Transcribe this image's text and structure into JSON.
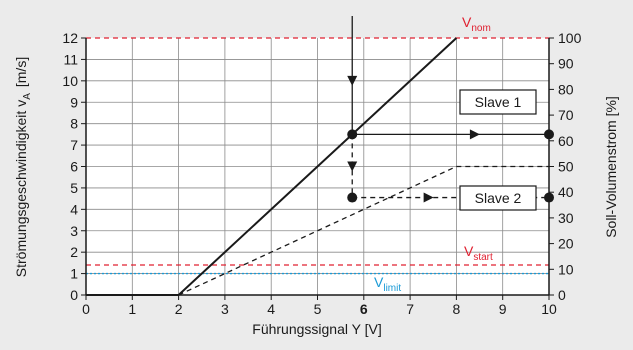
{
  "chart_data": {
    "type": "line",
    "xlabel": "Führungssignal Y [V]",
    "ylabel_left": "Strömungsgeschwindigkeit v",
    "ylabel_left_sub": "A",
    "ylabel_left_unit": "[m/s]",
    "ylabel_right": "Soll-Volumenstrom [%]",
    "xlim": [
      0,
      10
    ],
    "ylim_left": [
      0,
      12
    ],
    "ylim_right": [
      0,
      100
    ],
    "x_ticks": [
      "0",
      "1",
      "2",
      "3",
      "4",
      "5",
      "6",
      "7",
      "8",
      "9",
      "10"
    ],
    "x_tick_bold": "6",
    "y_ticks_left": [
      "0",
      "1",
      "2",
      "3",
      "4",
      "5",
      "6",
      "7",
      "8",
      "9",
      "10",
      "11",
      "12"
    ],
    "y_ticks_right": [
      "0",
      "10",
      "20",
      "30",
      "40",
      "50",
      "60",
      "70",
      "80",
      "90",
      "100"
    ],
    "grid": true,
    "series": [
      {
        "style": "solid",
        "x": [
          0,
          2,
          8
        ],
        "y": [
          0,
          0,
          12
        ]
      },
      {
        "style": "dashed",
        "x": [
          2,
          8,
          10
        ],
        "y": [
          0,
          6,
          6
        ]
      }
    ],
    "reference_lines": [
      {
        "id": "nom",
        "y": 12,
        "color": "#e02030",
        "style": "dashed",
        "label": "V",
        "sub": "nom"
      },
      {
        "id": "start",
        "y": 1.4,
        "color": "#e02030",
        "style": "dashed",
        "label": "V",
        "sub": "start"
      },
      {
        "id": "limit",
        "y": 1.0,
        "color": "#1a9ad6",
        "style": "dotted",
        "label": "V",
        "sub": "limit"
      }
    ],
    "annotations": {
      "signal_x": 5.75,
      "slave1": {
        "label": "Slave 1",
        "y": 7.5,
        "end_y": 7.5
      },
      "slave2": {
        "label": "Slave 2",
        "y": 4.55,
        "end_y": 4.55
      }
    }
  }
}
